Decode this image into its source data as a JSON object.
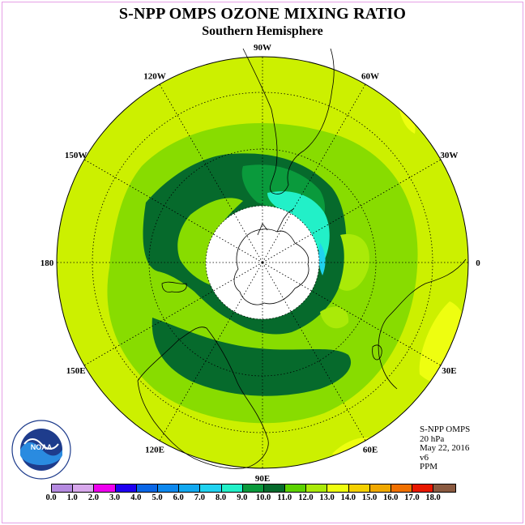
{
  "title": "S-NPP OMPS OZONE MIXING RATIO",
  "subtitle": "Southern Hemisphere",
  "longitude_labels": [
    {
      "text": "90W",
      "lon": -90
    },
    {
      "text": "60W",
      "lon": -60
    },
    {
      "text": "30W",
      "lon": -30
    },
    {
      "text": "0",
      "lon": 0
    },
    {
      "text": "30E",
      "lon": 30
    },
    {
      "text": "60E",
      "lon": 60
    },
    {
      "text": "90E",
      "lon": 90
    },
    {
      "text": "120E",
      "lon": 120
    },
    {
      "text": "150E",
      "lon": 150
    },
    {
      "text": "180",
      "lon": 180
    },
    {
      "text": "150W",
      "lon": -150
    },
    {
      "text": "120W",
      "lon": -120
    }
  ],
  "info": {
    "line1": "S-NPP OMPS",
    "line2": "20 hPa",
    "line3": "May 22, 2016",
    "line4": "v6",
    "line5": "PPM"
  },
  "logo": {
    "text": "NOAA",
    "ring_text": "NATIONAL OCEANIC AND ATMOSPHERIC ADMINISTRATION · U.S. DEPARTMENT OF COMMERCE"
  },
  "colorbar": {
    "labels": [
      "0.0",
      "1.0",
      "2.0",
      "3.0",
      "4.0",
      "5.0",
      "6.0",
      "7.0",
      "8.0",
      "9.0",
      "10.0",
      "11.0",
      "12.0",
      "13.0",
      "14.0",
      "15.0",
      "16.0",
      "17.0",
      "18.0"
    ],
    "colors": [
      "#b58ae0",
      "#d8a8ec",
      "#ee00ee",
      "#1f00f0",
      "#0a66e6",
      "#0d88ee",
      "#12a8f0",
      "#20d2f0",
      "#22f0c8",
      "#0a9a3c",
      "#066a2c",
      "#5cd200",
      "#aaea08",
      "#eefe10",
      "#f4d000",
      "#f0a800",
      "#f07000",
      "#e81800",
      "#8a5a40"
    ]
  },
  "map": {
    "background_level_color": "#ccf000",
    "pole_hole_color": "#ffffff"
  }
}
